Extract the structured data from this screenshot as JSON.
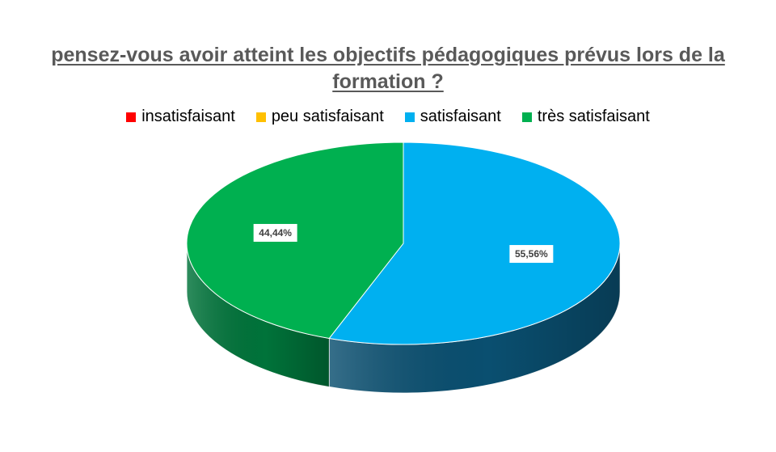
{
  "chart_data": {
    "type": "pie",
    "title": "pensez-vous avoir atteint les objectifs pédagogiques prévus lors de la formation ?",
    "legend_position": "top",
    "categories": [
      "insatisfaisant",
      "peu satisfaisant",
      "satisfaisant",
      "très satisfaisant"
    ],
    "values": [
      0,
      0,
      55.56,
      44.44
    ],
    "data_labels": [
      "",
      "",
      "55,56%",
      "44,44%"
    ],
    "colors": [
      "#ff0000",
      "#ffc000",
      "#00b0f0",
      "#00b050"
    ],
    "side_colors": [
      "#990000",
      "#997300",
      "#0a4f70",
      "#00733a"
    ],
    "style": "3d"
  }
}
